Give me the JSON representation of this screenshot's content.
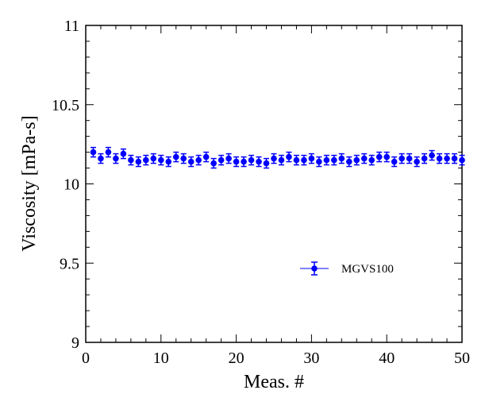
{
  "chart_data": {
    "type": "scatter",
    "xlabel": "Meas. #",
    "ylabel": "Viscosity [mPa-s]",
    "xlim": [
      0,
      50
    ],
    "ylim": [
      9,
      11
    ],
    "x_ticks": [
      "0",
      "10",
      "20",
      "30",
      "40",
      "50"
    ],
    "y_ticks": [
      "9",
      "9.5",
      "10",
      "10.5",
      "11"
    ],
    "grid": false,
    "legend_position": "right",
    "series": [
      {
        "name": "MGVS100",
        "color": "#0000ff",
        "marker": "circle",
        "error_bars": true,
        "error": 0.03,
        "x": [
          1,
          2,
          3,
          4,
          5,
          6,
          7,
          8,
          9,
          10,
          11,
          12,
          13,
          14,
          15,
          16,
          17,
          18,
          19,
          20,
          21,
          22,
          23,
          24,
          25,
          26,
          27,
          28,
          29,
          30,
          31,
          32,
          33,
          34,
          35,
          36,
          37,
          38,
          39,
          40,
          41,
          42,
          43,
          44,
          45,
          46,
          47,
          48,
          49,
          50
        ],
        "y": [
          10.2,
          10.16,
          10.2,
          10.16,
          10.19,
          10.15,
          10.14,
          10.15,
          10.16,
          10.15,
          10.14,
          10.17,
          10.16,
          10.14,
          10.15,
          10.17,
          10.13,
          10.15,
          10.16,
          10.14,
          10.14,
          10.15,
          10.14,
          10.13,
          10.16,
          10.15,
          10.17,
          10.15,
          10.15,
          10.16,
          10.14,
          10.15,
          10.15,
          10.16,
          10.14,
          10.15,
          10.16,
          10.15,
          10.17,
          10.17,
          10.14,
          10.16,
          10.16,
          10.14,
          10.16,
          10.18,
          10.16,
          10.16,
          10.16,
          10.15
        ]
      }
    ]
  }
}
